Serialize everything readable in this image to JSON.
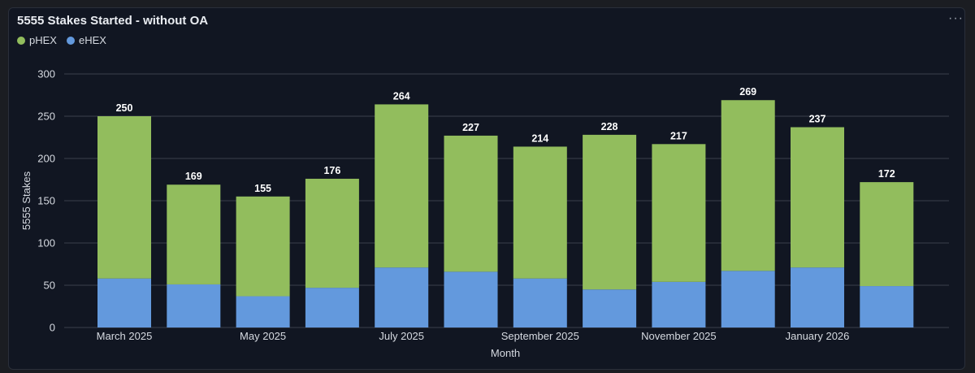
{
  "panel": {
    "title": "5555 Stakes Started - without OA",
    "menu_label": "···"
  },
  "legend": [
    {
      "name": "pHEX",
      "color": "#92bd5d"
    },
    {
      "name": "eHEX",
      "color": "#6399dd"
    }
  ],
  "chart_data": {
    "type": "bar",
    "stacked": true,
    "title": "5555 Stakes Started - without OA",
    "xlabel": "Month",
    "ylabel": "5555 Stakes",
    "ylim": [
      0,
      300
    ],
    "yticks": [
      0,
      50,
      100,
      150,
      200,
      250,
      300
    ],
    "categories": [
      "March 2025",
      "April 2025",
      "May 2025",
      "June 2025",
      "July 2025",
      "August 2025",
      "September 2025",
      "October 2025",
      "November 2025",
      "December 2025",
      "January 2026",
      "February 2026"
    ],
    "xtick_labels": [
      "March 2025",
      "",
      "May 2025",
      "",
      "July 2025",
      "",
      "September 2025",
      "",
      "November 2025",
      "",
      "January 2026",
      ""
    ],
    "series": [
      {
        "name": "eHEX",
        "color": "#6399dd",
        "values": [
          58,
          51,
          37,
          47,
          71,
          66,
          58,
          45,
          54,
          67,
          71,
          49
        ]
      },
      {
        "name": "pHEX",
        "color": "#92bd5d",
        "values": [
          192,
          118,
          118,
          129,
          193,
          161,
          156,
          183,
          163,
          202,
          166,
          123
        ]
      }
    ],
    "totals": [
      250,
      169,
      155,
      176,
      264,
      227,
      214,
      228,
      217,
      269,
      237,
      172
    ],
    "grid": true,
    "legend_position": "top-left",
    "grid_color": "#3a404c",
    "axis_text_color": "#d6dae1",
    "total_label_color": "#ffffff"
  }
}
